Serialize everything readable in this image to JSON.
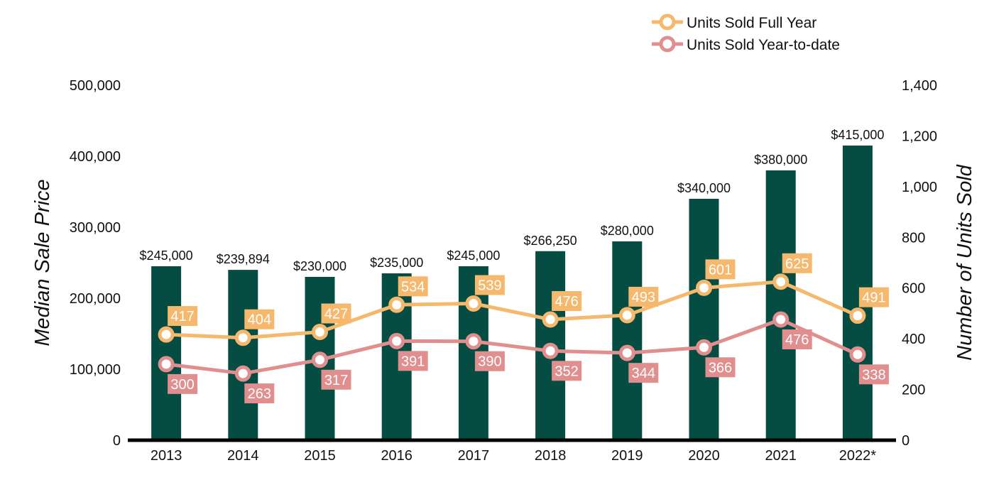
{
  "chart_data": {
    "type": "bar+line",
    "categories": [
      "2013",
      "2014",
      "2015",
      "2016",
      "2017",
      "2018",
      "2019",
      "2020",
      "2021",
      "2022*"
    ],
    "bars": {
      "name": "Median Sale Price",
      "values": [
        245000,
        239894,
        230000,
        235000,
        245000,
        266250,
        280000,
        340000,
        380000,
        415000
      ],
      "labels": [
        "$245,000",
        "$239,894",
        "$230,000",
        "$235,000",
        "$245,000",
        "$266,250",
        "$280,000",
        "$340,000",
        "$380,000",
        "$415,000"
      ],
      "color": "#054c42"
    },
    "series": [
      {
        "name": "Units Sold Full Year",
        "values": [
          417,
          404,
          427,
          534,
          539,
          476,
          493,
          601,
          625,
          491
        ],
        "labels": [
          "417",
          "404",
          "427",
          "534",
          "539",
          "476",
          "493",
          "601",
          "625",
          "491"
        ],
        "color": "#f5b86c",
        "label_position": "above"
      },
      {
        "name": "Units Sold Year-to-date",
        "values": [
          300,
          263,
          317,
          391,
          390,
          352,
          344,
          366,
          476,
          338
        ],
        "labels": [
          "300",
          "263",
          "317",
          "391",
          "390",
          "352",
          "344",
          "366",
          "476",
          "338"
        ],
        "color": "#e08e8e",
        "label_position": "below"
      }
    ],
    "ylabel_left": "Median Sale Price",
    "ylabel_right": "Number of Units Sold",
    "ylim_left": [
      0,
      500000
    ],
    "ylim_right": [
      0,
      1400
    ],
    "yticks_left": [
      "0",
      "100,000",
      "200,000",
      "300,000",
      "400,000",
      "500,000"
    ],
    "yticks_right": [
      "0",
      "200",
      "400",
      "600",
      "800",
      "1,000",
      "1,200",
      "1,400"
    ],
    "legend_position": "top-right",
    "grid": false
  }
}
